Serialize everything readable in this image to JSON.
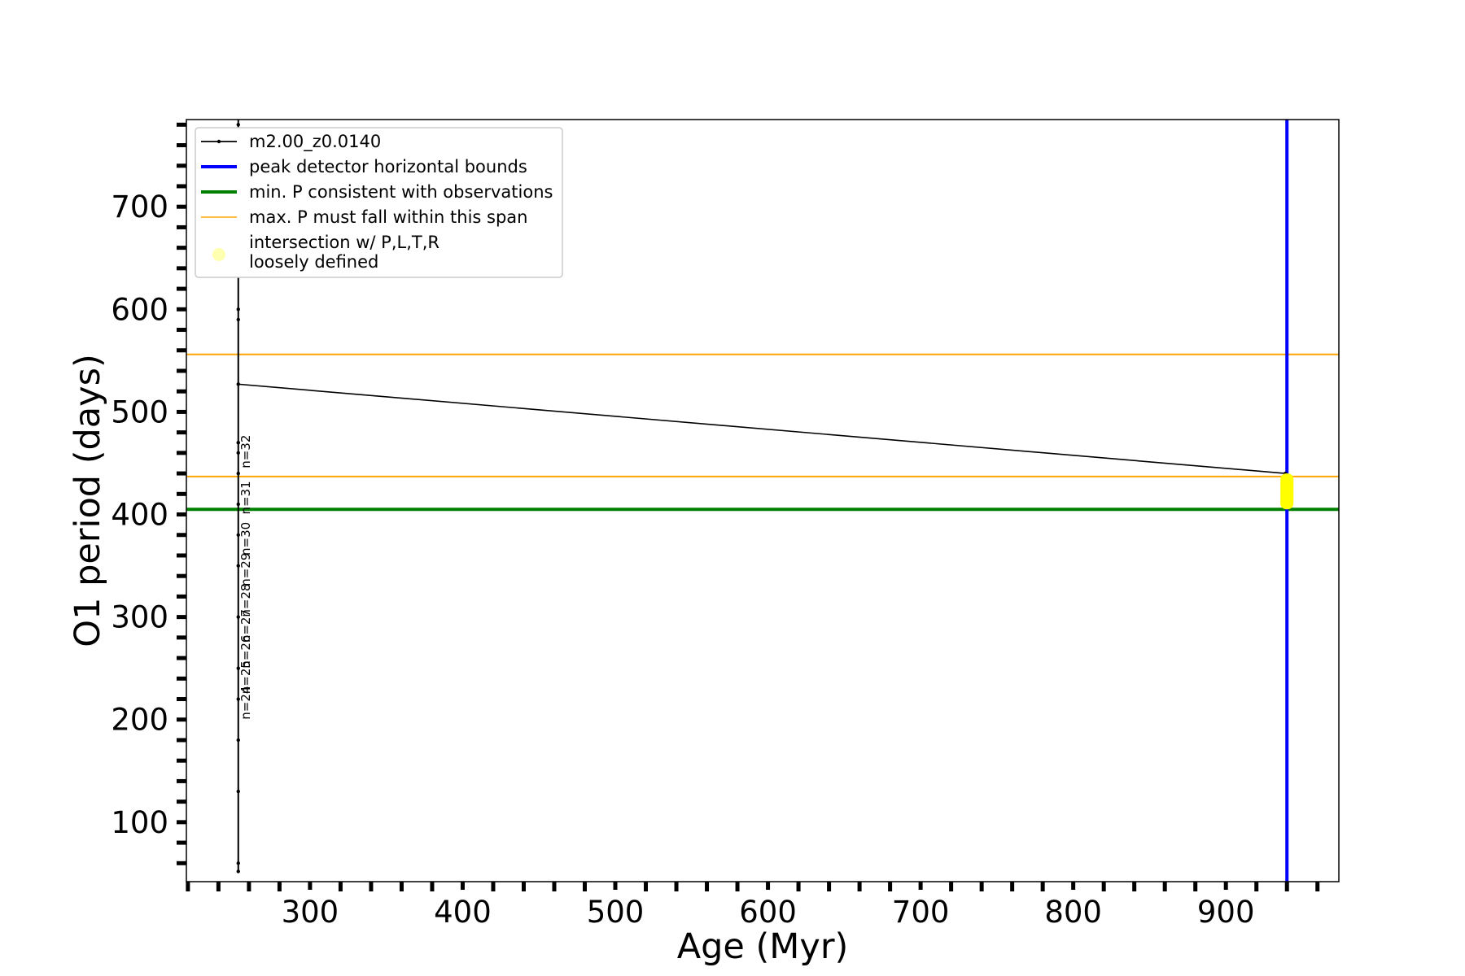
{
  "chart_data": {
    "type": "line",
    "title": "",
    "xlabel": "Age (Myr)",
    "ylabel": "O1 period (days)",
    "xlim": [
      219,
      974
    ],
    "ylim": [
      42,
      785
    ],
    "x_ticks": [
      300,
      400,
      500,
      600,
      700,
      800,
      900
    ],
    "y_ticks": [
      100,
      200,
      300,
      400,
      500,
      600,
      700
    ],
    "grid": false,
    "legend_placement": "top-left",
    "series": [
      {
        "name": "m2.00_z0.0140",
        "color": "#000000",
        "x": [
          253,
          253,
          253,
          253,
          253,
          253,
          253,
          253,
          253,
          253,
          253,
          253,
          253,
          253,
          253,
          253,
          253,
          253,
          939
        ],
        "y": [
          52,
          130,
          60,
          250,
          180,
          350,
          220,
          410,
          300,
          470,
          380,
          590,
          440,
          780,
          460,
          600,
          470,
          527,
          440
        ]
      }
    ],
    "hlines": [
      {
        "name": "max. P must fall within this span",
        "y": 556,
        "color": "#ffa500"
      },
      {
        "name": "max. P must fall within this span",
        "y": 437,
        "color": "#ffa500"
      },
      {
        "name": "min. P consistent with observations",
        "y": 405,
        "color": "#008000"
      }
    ],
    "vlines": [
      {
        "name": "peak detector horizontal bounds",
        "x": 940,
        "color": "#0000ff"
      }
    ],
    "intersection": {
      "name": "intersection w/ P,L,T,R\nloosely defined",
      "x": 940,
      "y_range": [
        405,
        440
      ],
      "color": "#ffff00"
    },
    "legend": [
      {
        "label": "m2.00_z0.0140",
        "kind": "line-dot",
        "color": "#000000"
      },
      {
        "label": "peak detector horizontal bounds",
        "kind": "line-thick",
        "color": "#0000ff"
      },
      {
        "label": "min. P consistent with observations",
        "kind": "line-thick",
        "color": "#008000"
      },
      {
        "label": "max. P must fall within this span",
        "kind": "line-thin",
        "color": "#ffa500"
      },
      {
        "label": "intersection w/ P,L,T,R",
        "label2": "loosely defined",
        "kind": "marker",
        "color": "#ffffb0"
      }
    ],
    "annotations": [
      {
        "text": "n=32",
        "x": 253,
        "y": 445
      },
      {
        "text": "n=31",
        "x": 253,
        "y": 400
      },
      {
        "text": "n=30",
        "x": 253,
        "y": 360
      },
      {
        "text": "n=29",
        "x": 253,
        "y": 330
      },
      {
        "text": "n=28",
        "x": 253,
        "y": 300
      },
      {
        "text": "n=27",
        "x": 253,
        "y": 275
      },
      {
        "text": "n=26",
        "x": 253,
        "y": 250
      },
      {
        "text": "n=25",
        "x": 253,
        "y": 225
      },
      {
        "text": "n=24",
        "x": 253,
        "y": 200
      }
    ]
  }
}
